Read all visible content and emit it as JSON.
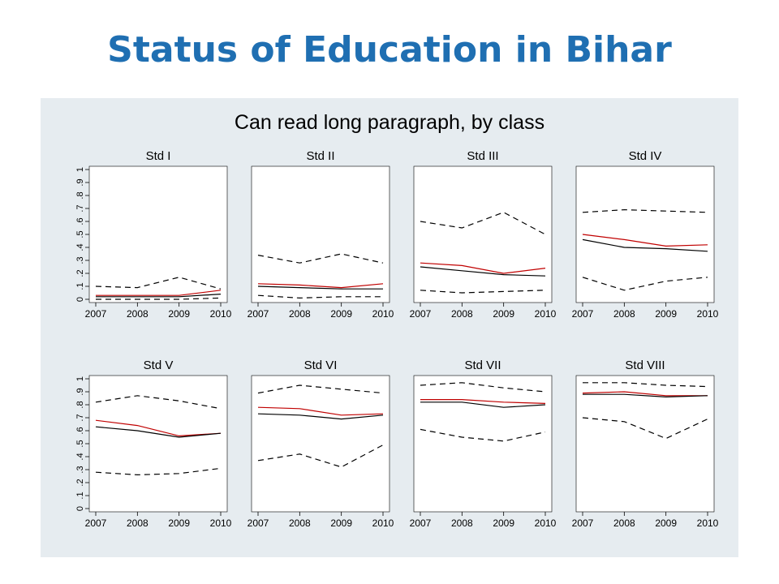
{
  "slide": {
    "title": "Status of Education in Bihar"
  },
  "colors": {
    "title": "#1f6fb2",
    "panel_background": "#e6ecf0",
    "plot_background": "#ffffff",
    "series_black": "#000000",
    "series_red": "#c00000"
  },
  "chart_data": {
    "type": "line",
    "title": "Can read long paragraph, by class",
    "layout": "small multiples, 2 rows x 4 columns",
    "x": [
      2007,
      2008,
      2009,
      2010
    ],
    "x_tick_labels": [
      "2007",
      "2008",
      "2009",
      "2010"
    ],
    "ylim": [
      0,
      1
    ],
    "y_tick_labels": [
      "0",
      ".1",
      ".2",
      ".3",
      ".4",
      ".5",
      ".6",
      ".7",
      ".8",
      ".9",
      "1"
    ],
    "y_ticks": [
      0,
      0.1,
      0.2,
      0.3,
      0.4,
      0.5,
      0.6,
      0.7,
      0.8,
      0.9,
      1
    ],
    "grid": false,
    "legend": "none",
    "panels": [
      {
        "title": "Std I",
        "series": [
          {
            "style": "dash",
            "color": "#000000",
            "values": [
              0.1,
              0.09,
              0.17,
              0.08
            ]
          },
          {
            "style": "solid",
            "color": "#c00000",
            "values": [
              0.03,
              0.03,
              0.03,
              0.07
            ]
          },
          {
            "style": "solid",
            "color": "#000000",
            "values": [
              0.02,
              0.02,
              0.02,
              0.04
            ]
          },
          {
            "style": "dash",
            "color": "#000000",
            "values": [
              0.0,
              0.0,
              0.0,
              0.01
            ]
          }
        ]
      },
      {
        "title": "Std II",
        "series": [
          {
            "style": "dash",
            "color": "#000000",
            "values": [
              0.34,
              0.28,
              0.35,
              0.28
            ]
          },
          {
            "style": "solid",
            "color": "#c00000",
            "values": [
              0.12,
              0.11,
              0.09,
              0.12
            ]
          },
          {
            "style": "solid",
            "color": "#000000",
            "values": [
              0.1,
              0.09,
              0.08,
              0.08
            ]
          },
          {
            "style": "dash",
            "color": "#000000",
            "values": [
              0.03,
              0.01,
              0.02,
              0.02
            ]
          }
        ]
      },
      {
        "title": "Std III",
        "series": [
          {
            "style": "dash",
            "color": "#000000",
            "values": [
              0.6,
              0.55,
              0.67,
              0.5
            ]
          },
          {
            "style": "solid",
            "color": "#c00000",
            "values": [
              0.28,
              0.26,
              0.2,
              0.24
            ]
          },
          {
            "style": "solid",
            "color": "#000000",
            "values": [
              0.25,
              0.22,
              0.19,
              0.18
            ]
          },
          {
            "style": "dash",
            "color": "#000000",
            "values": [
              0.07,
              0.05,
              0.06,
              0.07
            ]
          }
        ]
      },
      {
        "title": "Std IV",
        "series": [
          {
            "style": "dash",
            "color": "#000000",
            "values": [
              0.67,
              0.69,
              0.68,
              0.67
            ]
          },
          {
            "style": "solid",
            "color": "#c00000",
            "values": [
              0.5,
              0.46,
              0.41,
              0.42
            ]
          },
          {
            "style": "solid",
            "color": "#000000",
            "values": [
              0.46,
              0.4,
              0.39,
              0.37
            ]
          },
          {
            "style": "dash",
            "color": "#000000",
            "values": [
              0.17,
              0.07,
              0.14,
              0.17
            ]
          }
        ]
      },
      {
        "title": "Std V",
        "series": [
          {
            "style": "dash",
            "color": "#000000",
            "values": [
              0.82,
              0.87,
              0.83,
              0.77
            ]
          },
          {
            "style": "solid",
            "color": "#c00000",
            "values": [
              0.68,
              0.64,
              0.56,
              0.58
            ]
          },
          {
            "style": "solid",
            "color": "#000000",
            "values": [
              0.63,
              0.6,
              0.55,
              0.58
            ]
          },
          {
            "style": "dash",
            "color": "#000000",
            "values": [
              0.28,
              0.26,
              0.27,
              0.31
            ]
          }
        ]
      },
      {
        "title": "Std VI",
        "series": [
          {
            "style": "dash",
            "color": "#000000",
            "values": [
              0.89,
              0.95,
              0.92,
              0.89
            ]
          },
          {
            "style": "solid",
            "color": "#c00000",
            "values": [
              0.78,
              0.77,
              0.72,
              0.73
            ]
          },
          {
            "style": "solid",
            "color": "#000000",
            "values": [
              0.73,
              0.72,
              0.69,
              0.72
            ]
          },
          {
            "style": "dash",
            "color": "#000000",
            "values": [
              0.37,
              0.42,
              0.32,
              0.49
            ]
          }
        ]
      },
      {
        "title": "Std VII",
        "series": [
          {
            "style": "dash",
            "color": "#000000",
            "values": [
              0.95,
              0.97,
              0.93,
              0.9
            ]
          },
          {
            "style": "solid",
            "color": "#c00000",
            "values": [
              0.84,
              0.84,
              0.82,
              0.81
            ]
          },
          {
            "style": "solid",
            "color": "#000000",
            "values": [
              0.82,
              0.82,
              0.78,
              0.8
            ]
          },
          {
            "style": "dash",
            "color": "#000000",
            "values": [
              0.61,
              0.55,
              0.52,
              0.59
            ]
          }
        ]
      },
      {
        "title": "Std VIII",
        "series": [
          {
            "style": "dash",
            "color": "#000000",
            "values": [
              0.97,
              0.97,
              0.95,
              0.94
            ]
          },
          {
            "style": "solid",
            "color": "#c00000",
            "values": [
              0.89,
              0.9,
              0.87,
              0.87
            ]
          },
          {
            "style": "solid",
            "color": "#000000",
            "values": [
              0.88,
              0.88,
              0.86,
              0.87
            ]
          },
          {
            "style": "dash",
            "color": "#000000",
            "values": [
              0.7,
              0.67,
              0.54,
              0.69
            ]
          }
        ]
      }
    ]
  }
}
